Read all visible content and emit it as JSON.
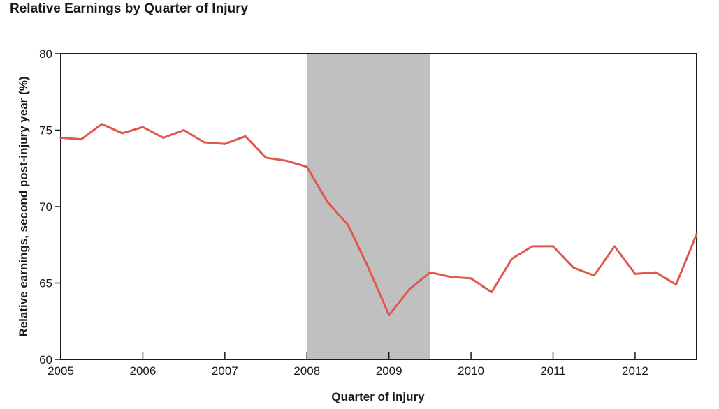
{
  "chart_data": {
    "type": "line",
    "title": "Relative Earnings by Quarter of Injury",
    "xlabel": "Quarter of injury",
    "ylabel": "Relative earnings, second post-injury year (%)",
    "xlim": [
      2005,
      2012.75
    ],
    "ylim": [
      60,
      80
    ],
    "xticks": [
      2005,
      2006,
      2007,
      2008,
      2009,
      2010,
      2011,
      2012
    ],
    "yticks": [
      60,
      65,
      70,
      75,
      80
    ],
    "grid": false,
    "shaded_region": {
      "x_start": 2008,
      "x_end": 2009.5,
      "color": "#c0c0c0"
    },
    "line_color": "#e0574f",
    "series": [
      {
        "x": [
          2005,
          2005.25,
          2005.5,
          2005.75,
          2006,
          2006.25,
          2006.5,
          2006.75,
          2007,
          2007.25,
          2007.5,
          2007.75,
          2008,
          2008.25,
          2008.5,
          2008.75,
          2009,
          2009.25,
          2009.5,
          2009.75,
          2010,
          2010.25,
          2010.5,
          2010.75,
          2011,
          2011.25,
          2011.5,
          2011.75,
          2012,
          2012.25,
          2012.5,
          2012.75
        ],
        "values": [
          74.5,
          74.4,
          75.4,
          74.8,
          75.2,
          74.5,
          75.0,
          74.2,
          74.1,
          74.6,
          73.2,
          73.0,
          72.6,
          70.3,
          68.8,
          66.0,
          62.9,
          64.6,
          65.7,
          65.4,
          65.3,
          64.4,
          66.6,
          67.4,
          67.4,
          66.0,
          65.5,
          67.4,
          65.6,
          65.7,
          64.9,
          68.2
        ]
      }
    ]
  }
}
